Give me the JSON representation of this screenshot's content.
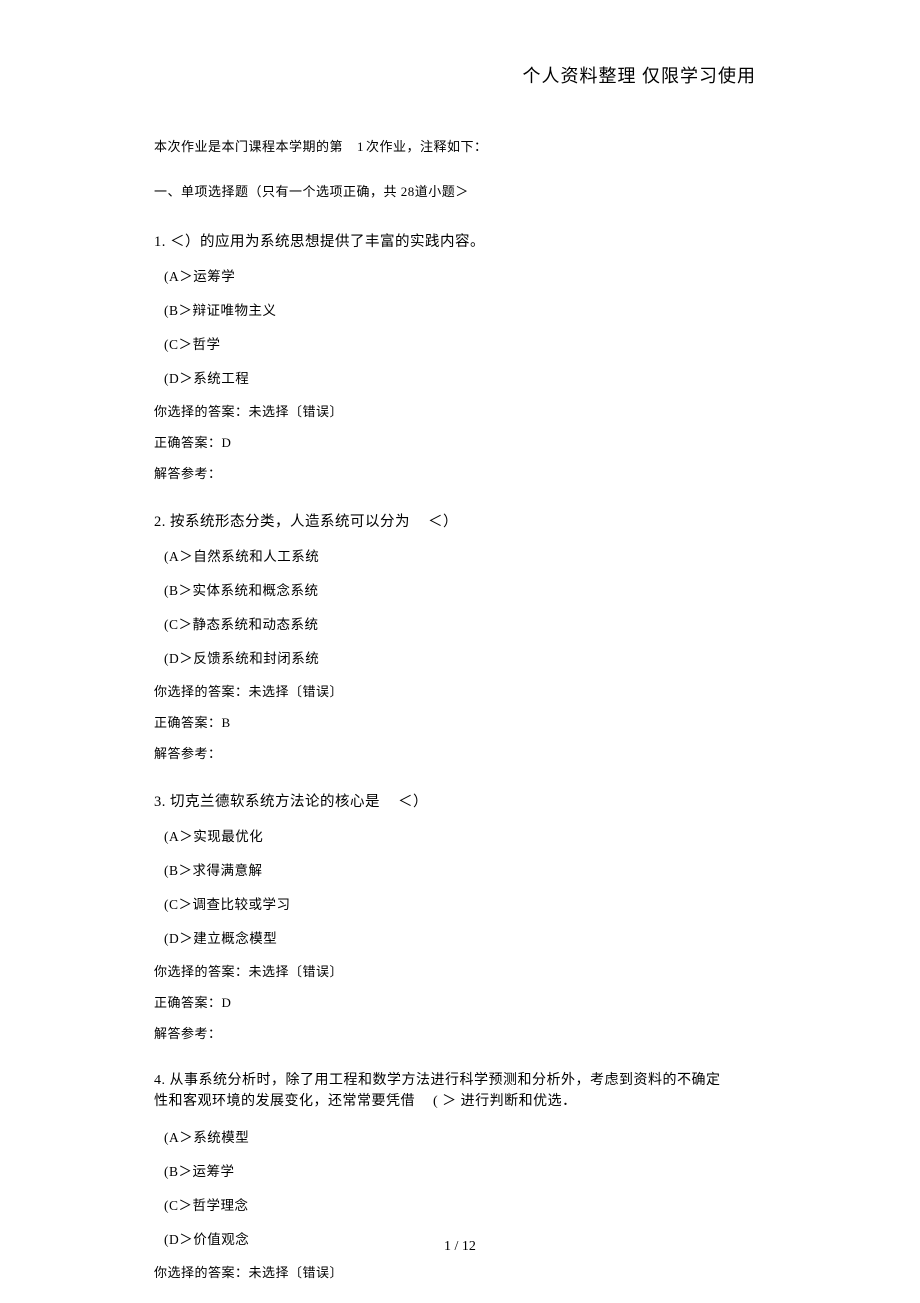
{
  "header": "个人资料整理 仅限学习使用",
  "intro_prefix": "本次作业是本门课程本学期的第",
  "intro_num": "1",
  "intro_suffix": "次作业，注释如下：",
  "section_title": "一、单项选择题（只有一个选项正确，共 28道小题＞",
  "your_choice_label": "你选择的答案：未选择〔错误〕",
  "correct_prefix": "正确答案：",
  "explain_label": "解答参考：",
  "questions": [
    {
      "num": "1.",
      "stem_before": "＜）的应用为系统思想提供了丰富的实践内容。",
      "options": {
        "A": "(A＞运筹学",
        "B": "(B＞辩证唯物主义",
        "C": "(C＞哲学",
        "D": "(D＞系统工程"
      },
      "correct": "D"
    },
    {
      "num": "2.",
      "stem_before": "按系统形态分类，人造系统可以分为",
      "stem_after": "＜）",
      "options": {
        "A": "(A＞自然系统和人工系统",
        "B": "(B＞实体系统和概念系统",
        "C": "(C＞静态系统和动态系统",
        "D": "(D＞反馈系统和封闭系统"
      },
      "correct": "B"
    },
    {
      "num": "3.",
      "stem_before": "切克兰德软系统方法论的核心是",
      "stem_after": "＜）",
      "options": {
        "A": "(A＞实现最优化",
        "B": "(B＞求得满意解",
        "C": "(C＞调查比较或学习",
        "D": "(D＞建立概念模型"
      },
      "correct": "D"
    },
    {
      "num": "4.",
      "stem_line1": "从事系统分析时，除了用工程和数学方法进行科学预测和分析外，考虑到资料的不确定",
      "stem_line2a": "性和客观环境的发展变化，还常常要凭借",
      "stem_line2b": "( ＞ 进行判断和优选．",
      "options": {
        "A": "(A＞系统模型",
        "B": "(B＞运筹学",
        "C": "(C＞哲学理念",
        "D": "(D＞价值观念"
      }
    }
  ],
  "footer": "1 / 12"
}
